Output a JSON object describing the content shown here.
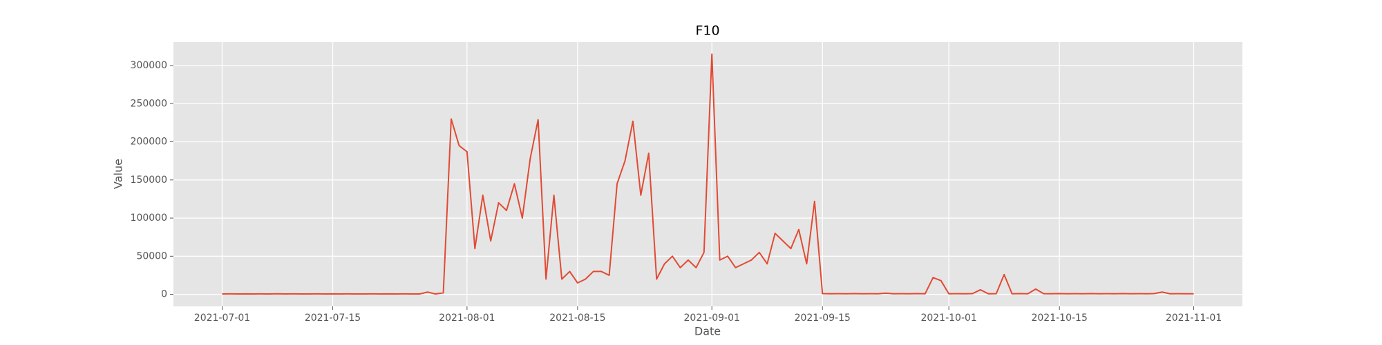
{
  "chart_data": {
    "type": "line",
    "title": "F10",
    "xlabel": "Date",
    "ylabel": "Value",
    "color": "#e24a33",
    "grid": true,
    "xlim": [
      "2021-06-24T20:00",
      "2021-11-07T04:00"
    ],
    "xticks": [
      "2021-07-01",
      "2021-07-15",
      "2021-08-01",
      "2021-08-15",
      "2021-09-01",
      "2021-09-15",
      "2021-10-01",
      "2021-10-15",
      "2021-11-01"
    ],
    "ylim": [
      -15750,
      330750
    ],
    "yticks": [
      0,
      50000,
      100000,
      150000,
      200000,
      250000,
      300000
    ],
    "x": [
      "2021-07-01",
      "2021-07-02",
      "2021-07-03",
      "2021-07-04",
      "2021-07-05",
      "2021-07-06",
      "2021-07-07",
      "2021-07-08",
      "2021-07-09",
      "2021-07-10",
      "2021-07-11",
      "2021-07-12",
      "2021-07-13",
      "2021-07-14",
      "2021-07-15",
      "2021-07-16",
      "2021-07-17",
      "2021-07-18",
      "2021-07-19",
      "2021-07-20",
      "2021-07-21",
      "2021-07-22",
      "2021-07-23",
      "2021-07-24",
      "2021-07-25",
      "2021-07-26",
      "2021-07-27",
      "2021-07-28",
      "2021-07-29",
      "2021-07-30",
      "2021-07-31",
      "2021-08-01",
      "2021-08-02",
      "2021-08-03",
      "2021-08-04",
      "2021-08-05",
      "2021-08-06",
      "2021-08-07",
      "2021-08-08",
      "2021-08-09",
      "2021-08-10",
      "2021-08-11",
      "2021-08-12",
      "2021-08-13",
      "2021-08-14",
      "2021-08-15",
      "2021-08-16",
      "2021-08-17",
      "2021-08-18",
      "2021-08-19",
      "2021-08-20",
      "2021-08-21",
      "2021-08-22",
      "2021-08-23",
      "2021-08-24",
      "2021-08-25",
      "2021-08-26",
      "2021-08-27",
      "2021-08-28",
      "2021-08-29",
      "2021-08-30",
      "2021-08-31",
      "2021-09-01",
      "2021-09-02",
      "2021-09-03",
      "2021-09-04",
      "2021-09-05",
      "2021-09-06",
      "2021-09-07",
      "2021-09-08",
      "2021-09-09",
      "2021-09-10",
      "2021-09-11",
      "2021-09-12",
      "2021-09-13",
      "2021-09-14",
      "2021-09-15",
      "2021-09-16",
      "2021-09-17",
      "2021-09-18",
      "2021-09-19",
      "2021-09-20",
      "2021-09-21",
      "2021-09-22",
      "2021-09-23",
      "2021-09-24",
      "2021-09-25",
      "2021-09-26",
      "2021-09-27",
      "2021-09-28",
      "2021-09-29",
      "2021-09-30",
      "2021-10-01",
      "2021-10-02",
      "2021-10-03",
      "2021-10-04",
      "2021-10-05",
      "2021-10-06",
      "2021-10-07",
      "2021-10-08",
      "2021-10-09",
      "2021-10-10",
      "2021-10-11",
      "2021-10-12",
      "2021-10-13",
      "2021-10-14",
      "2021-10-15",
      "2021-10-16",
      "2021-10-17",
      "2021-10-18",
      "2021-10-19",
      "2021-10-20",
      "2021-10-21",
      "2021-10-22",
      "2021-10-23",
      "2021-10-24",
      "2021-10-25",
      "2021-10-26",
      "2021-10-27",
      "2021-10-28",
      "2021-10-29",
      "2021-10-30",
      "2021-10-31",
      "2021-11-01"
    ],
    "values": [
      500,
      600,
      500,
      700,
      500,
      600,
      500,
      800,
      500,
      600,
      500,
      500,
      600,
      500,
      700,
      500,
      600,
      500,
      500,
      600,
      500,
      700,
      500,
      600,
      500,
      500,
      3000,
      500,
      2000,
      230000,
      195000,
      187000,
      60000,
      130000,
      70000,
      120000,
      110000,
      145000,
      100000,
      178000,
      229000,
      20000,
      130000,
      20000,
      30000,
      15000,
      20000,
      30000,
      30000,
      25000,
      145000,
      175000,
      227000,
      130000,
      185000,
      20000,
      40000,
      50000,
      35000,
      45000,
      35000,
      55000,
      315000,
      45000,
      50000,
      35000,
      40000,
      45000,
      55000,
      40000,
      80000,
      70000,
      60000,
      85000,
      40000,
      122000,
      1000,
      800,
      900,
      800,
      1000,
      800,
      900,
      800,
      1500,
      800,
      900,
      800,
      1000,
      800,
      22000,
      18000,
      800,
      900,
      800,
      1000,
      6000,
      800,
      900,
      26000,
      800,
      1000,
      800,
      7000,
      900,
      800,
      1000,
      800,
      900,
      800,
      1000,
      800,
      900,
      800,
      1000,
      800,
      900,
      800,
      1000,
      3000,
      800,
      900,
      800,
      800
    ]
  }
}
